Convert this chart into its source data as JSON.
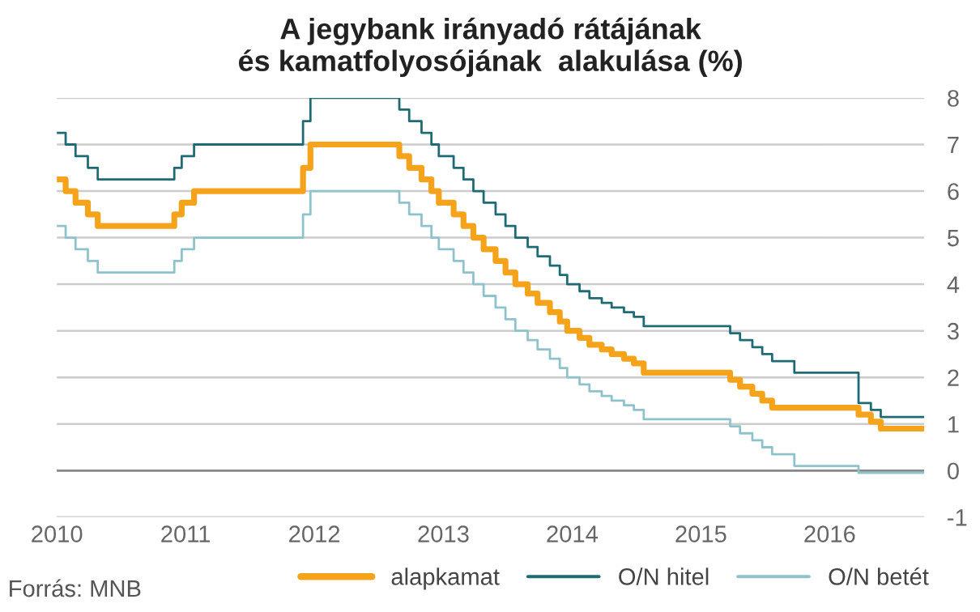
{
  "chart_data": {
    "type": "step",
    "title": "A jegybank irányadó rátájának\nés kamatfolyosójának  alakulása (%)",
    "x": [
      "2010-01-01",
      "2010-01-26",
      "2010-02-23",
      "2010-03-30",
      "2010-04-27",
      "2010-11-30",
      "2010-12-21",
      "2011-01-25",
      "2011-11-30",
      "2011-12-21",
      "2012-08-29",
      "2012-09-26",
      "2012-10-31",
      "2012-11-28",
      "2012-12-19",
      "2013-01-30",
      "2013-02-27",
      "2013-03-27",
      "2013-04-25",
      "2013-05-29",
      "2013-06-26",
      "2013-07-24",
      "2013-08-28",
      "2013-09-25",
      "2013-10-30",
      "2013-11-27",
      "2013-12-18",
      "2014-01-22",
      "2014-02-19",
      "2014-03-26",
      "2014-04-23",
      "2014-05-28",
      "2014-06-25",
      "2014-07-23",
      "2015-03-25",
      "2015-04-22",
      "2015-05-27",
      "2015-06-24",
      "2015-07-22",
      "2015-09-23",
      "2016-03-23",
      "2016-04-27",
      "2016-05-25",
      "2016-09-25"
    ],
    "series": [
      {
        "name": "alapkamat",
        "color": "#f5a31a",
        "values": [
          6.25,
          6.0,
          5.75,
          5.5,
          5.25,
          5.5,
          5.75,
          6.0,
          6.5,
          7.0,
          6.75,
          6.5,
          6.25,
          6.0,
          5.75,
          5.5,
          5.25,
          5.0,
          4.75,
          4.5,
          4.25,
          4.0,
          3.8,
          3.6,
          3.4,
          3.2,
          3.0,
          2.85,
          2.7,
          2.6,
          2.5,
          2.4,
          2.3,
          2.1,
          1.95,
          1.8,
          1.65,
          1.5,
          1.35,
          1.35,
          1.2,
          1.05,
          0.9,
          0.9
        ]
      },
      {
        "name": "O/N hitel",
        "color": "#1f6b75",
        "values": [
          7.25,
          7.0,
          6.75,
          6.5,
          6.25,
          6.5,
          6.75,
          7.0,
          7.5,
          8.0,
          7.75,
          7.5,
          7.25,
          7.0,
          6.75,
          6.5,
          6.25,
          6.0,
          5.75,
          5.5,
          5.25,
          5.0,
          4.8,
          4.6,
          4.4,
          4.2,
          4.0,
          3.85,
          3.7,
          3.6,
          3.5,
          3.4,
          3.3,
          3.1,
          2.95,
          2.8,
          2.65,
          2.5,
          2.35,
          2.1,
          1.45,
          1.3,
          1.15,
          1.15
        ]
      },
      {
        "name": "O/N betét",
        "color": "#8fc3cc",
        "values": [
          5.25,
          5.0,
          4.75,
          4.5,
          4.25,
          4.5,
          4.75,
          5.0,
          5.5,
          6.0,
          5.75,
          5.5,
          5.25,
          5.0,
          4.75,
          4.5,
          4.25,
          4.0,
          3.75,
          3.5,
          3.25,
          3.0,
          2.8,
          2.6,
          2.4,
          2.2,
          2.0,
          1.85,
          1.7,
          1.6,
          1.5,
          1.4,
          1.3,
          1.1,
          0.95,
          0.8,
          0.65,
          0.5,
          0.35,
          0.1,
          -0.05,
          -0.05,
          -0.05,
          -0.05
        ]
      }
    ],
    "xlim": [
      "2010-01-01",
      "2016-09-25"
    ],
    "xticks": [
      "2010",
      "2011",
      "2012",
      "2013",
      "2014",
      "2015",
      "2016"
    ],
    "ylim": [
      -1,
      8
    ],
    "yticks": [
      -1,
      0,
      1,
      2,
      3,
      4,
      5,
      6,
      7,
      8
    ],
    "ref_lines": [
      {
        "axis": "y",
        "value": 0,
        "color": "#888888"
      }
    ],
    "grid": "y",
    "legend": "bottom right",
    "annotations": [
      "Forrás: MNB"
    ]
  }
}
